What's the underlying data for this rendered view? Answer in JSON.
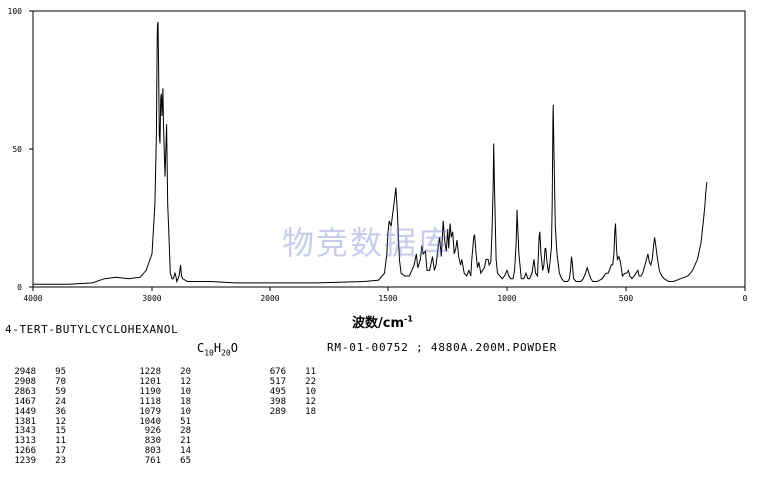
{
  "chart_data": {
    "type": "line",
    "title": "",
    "xlabel": "波数/cm⁻¹",
    "ylabel": "",
    "xlim": [
      4000,
      0
    ],
    "ylim": [
      0,
      100
    ],
    "x_ticks": [
      4000,
      3000,
      2000,
      1500,
      1000,
      500,
      0
    ],
    "x_tick_labels": [
      "4000",
      "3000",
      "2000",
      "1500",
      "1000",
      "500",
      "0"
    ],
    "y_ticks": [
      0,
      50,
      100
    ],
    "y_tick_labels": [
      "0",
      "50",
      "100"
    ],
    "grid": false,
    "series": [
      {
        "points": [
          [
            4000,
            1
          ],
          [
            3700,
            1
          ],
          [
            3500,
            1.5
          ],
          [
            3400,
            3
          ],
          [
            3300,
            3.5
          ],
          [
            3200,
            3
          ],
          [
            3100,
            3.5
          ],
          [
            3050,
            6
          ],
          [
            3000,
            12
          ],
          [
            2975,
            30
          ],
          [
            2963,
            55
          ],
          [
            2956,
            90
          ],
          [
            2953,
            95
          ],
          [
            2949,
            96
          ],
          [
            2944,
            80
          ],
          [
            2938,
            55
          ],
          [
            2932,
            52
          ],
          [
            2926,
            68
          ],
          [
            2921,
            70
          ],
          [
            2915,
            62
          ],
          [
            2908,
            72
          ],
          [
            2903,
            60
          ],
          [
            2890,
            40
          ],
          [
            2876,
            59
          ],
          [
            2867,
            30
          ],
          [
            2858,
            20
          ],
          [
            2845,
            5
          ],
          [
            2830,
            3
          ],
          [
            2820,
            3
          ],
          [
            2805,
            5
          ],
          [
            2798,
            4
          ],
          [
            2790,
            2
          ],
          [
            2770,
            4
          ],
          [
            2758,
            8
          ],
          [
            2750,
            4
          ],
          [
            2740,
            3
          ],
          [
            2700,
            2
          ],
          [
            2600,
            2
          ],
          [
            2500,
            2
          ],
          [
            2300,
            1.5
          ],
          [
            2000,
            1.5
          ],
          [
            1800,
            1.5
          ],
          [
            1600,
            2
          ],
          [
            1540,
            2.5
          ],
          [
            1515,
            5
          ],
          [
            1505,
            12
          ],
          [
            1500,
            20
          ],
          [
            1495,
            24
          ],
          [
            1487,
            22
          ],
          [
            1475,
            30
          ],
          [
            1467,
            36
          ],
          [
            1460,
            26
          ],
          [
            1452,
            10
          ],
          [
            1445,
            5
          ],
          [
            1430,
            4
          ],
          [
            1410,
            4
          ],
          [
            1390,
            8
          ],
          [
            1381,
            12
          ],
          [
            1375,
            7
          ],
          [
            1364,
            10
          ],
          [
            1358,
            15
          ],
          [
            1352,
            12
          ],
          [
            1343,
            13
          ],
          [
            1336,
            6
          ],
          [
            1325,
            6
          ],
          [
            1313,
            11
          ],
          [
            1305,
            6
          ],
          [
            1298,
            8
          ],
          [
            1290,
            14
          ],
          [
            1283,
            18
          ],
          [
            1276,
            11
          ],
          [
            1268,
            24
          ],
          [
            1262,
            17
          ],
          [
            1255,
            13
          ],
          [
            1249,
            21
          ],
          [
            1245,
            14
          ],
          [
            1239,
            23
          ],
          [
            1234,
            18
          ],
          [
            1228,
            20
          ],
          [
            1222,
            12
          ],
          [
            1215,
            14
          ],
          [
            1210,
            17
          ],
          [
            1203,
            11
          ],
          [
            1195,
            8
          ],
          [
            1190,
            10
          ],
          [
            1180,
            5
          ],
          [
            1170,
            4
          ],
          [
            1160,
            6
          ],
          [
            1152,
            4
          ],
          [
            1148,
            10
          ],
          [
            1140,
            18
          ],
          [
            1136,
            19
          ],
          [
            1130,
            12
          ],
          [
            1124,
            7
          ],
          [
            1118,
            9
          ],
          [
            1110,
            5
          ],
          [
            1095,
            7
          ],
          [
            1088,
            10
          ],
          [
            1079,
            10
          ],
          [
            1075,
            8
          ],
          [
            1068,
            9
          ],
          [
            1063,
            20
          ],
          [
            1058,
            37
          ],
          [
            1056,
            52
          ],
          [
            1053,
            38
          ],
          [
            1046,
            10
          ],
          [
            1040,
            5
          ],
          [
            1030,
            4
          ],
          [
            1020,
            3
          ],
          [
            1010,
            4
          ],
          [
            1000,
            6
          ],
          [
            992,
            4
          ],
          [
            985,
            3
          ],
          [
            975,
            3
          ],
          [
            968,
            6
          ],
          [
            962,
            15
          ],
          [
            959,
            24
          ],
          [
            958,
            28
          ],
          [
            955,
            22
          ],
          [
            950,
            12
          ],
          [
            940,
            3
          ],
          [
            930,
            3
          ],
          [
            925,
            4
          ],
          [
            920,
            5
          ],
          [
            912,
            3
          ],
          [
            905,
            3
          ],
          [
            895,
            5
          ],
          [
            887,
            10
          ],
          [
            880,
            5
          ],
          [
            872,
            4
          ],
          [
            868,
            12
          ],
          [
            865,
            18
          ],
          [
            862,
            20
          ],
          [
            857,
            12
          ],
          [
            850,
            6
          ],
          [
            845,
            8
          ],
          [
            840,
            14
          ],
          [
            837,
            14
          ],
          [
            832,
            9
          ],
          [
            825,
            5
          ],
          [
            818,
            10
          ],
          [
            813,
            15
          ],
          [
            810,
            30
          ],
          [
            807,
            60
          ],
          [
            806,
            66
          ],
          [
            803,
            50
          ],
          [
            797,
            22
          ],
          [
            790,
            12
          ],
          [
            780,
            5
          ],
          [
            770,
            3
          ],
          [
            760,
            2
          ],
          [
            745,
            2
          ],
          [
            738,
            3
          ],
          [
            733,
            6
          ],
          [
            729,
            11
          ],
          [
            725,
            8
          ],
          [
            720,
            3
          ],
          [
            710,
            2
          ],
          [
            700,
            2
          ],
          [
            690,
            2
          ],
          [
            680,
            3
          ],
          [
            670,
            5
          ],
          [
            663,
            7
          ],
          [
            656,
            5
          ],
          [
            648,
            3
          ],
          [
            640,
            2
          ],
          [
            620,
            2
          ],
          [
            600,
            3
          ],
          [
            585,
            5
          ],
          [
            575,
            5
          ],
          [
            570,
            6
          ],
          [
            562,
            8
          ],
          [
            556,
            8
          ],
          [
            551,
            12
          ],
          [
            547,
            20
          ],
          [
            544,
            23
          ],
          [
            540,
            14
          ],
          [
            536,
            10
          ],
          [
            530,
            11
          ],
          [
            523,
            9
          ],
          [
            515,
            4
          ],
          [
            505,
            5
          ],
          [
            497,
            5
          ],
          [
            490,
            6
          ],
          [
            484,
            4
          ],
          [
            475,
            3
          ],
          [
            465,
            4
          ],
          [
            458,
            5
          ],
          [
            450,
            6
          ],
          [
            445,
            4
          ],
          [
            437,
            4
          ],
          [
            430,
            5
          ],
          [
            420,
            8
          ],
          [
            414,
            10
          ],
          [
            408,
            12
          ],
          [
            402,
            9
          ],
          [
            396,
            8
          ],
          [
            390,
            10
          ],
          [
            384,
            15
          ],
          [
            380,
            18
          ],
          [
            375,
            15
          ],
          [
            369,
            11
          ],
          [
            360,
            6
          ],
          [
            350,
            4
          ],
          [
            340,
            3
          ],
          [
            320,
            2
          ],
          [
            300,
            2
          ],
          [
            270,
            3
          ],
          [
            240,
            4
          ],
          [
            220,
            6
          ],
          [
            200,
            10
          ],
          [
            185,
            16
          ],
          [
            175,
            24
          ],
          [
            168,
            30
          ],
          [
            165,
            34
          ],
          [
            160,
            38
          ]
        ]
      }
    ]
  },
  "labels": {
    "compound": "4-TERT-BUTYLCYCLOHEXANOL",
    "formula_c": "C",
    "formula_c_n": "10",
    "formula_h": "H",
    "formula_h_n": "20",
    "formula_o": "O",
    "reference": "RM-01-00752 ; 4880A.200M.POWDER",
    "xunit_main": "波数/cm",
    "xunit_exp": "-1",
    "watermark": "物竞数据库"
  },
  "peak_columns": [
    [
      {
        "wn": "2948",
        "it": "95"
      },
      {
        "wn": "2908",
        "it": "70"
      },
      {
        "wn": "2863",
        "it": "59"
      },
      {
        "wn": "1467",
        "it": "24"
      },
      {
        "wn": "1449",
        "it": "36"
      },
      {
        "wn": "1381",
        "it": "12"
      },
      {
        "wn": "1343",
        "it": "15"
      },
      {
        "wn": "1313",
        "it": "11"
      },
      {
        "wn": "1266",
        "it": "17"
      },
      {
        "wn": "1239",
        "it": "23"
      }
    ],
    [
      {
        "wn": "1228",
        "it": "20"
      },
      {
        "wn": "1201",
        "it": "12"
      },
      {
        "wn": "1190",
        "it": "10"
      },
      {
        "wn": "1118",
        "it": "18"
      },
      {
        "wn": "1079",
        "it": "10"
      },
      {
        "wn": "1040",
        "it": "51"
      },
      {
        "wn": "926",
        "it": "28"
      },
      {
        "wn": "830",
        "it": "21"
      },
      {
        "wn": "803",
        "it": "14"
      },
      {
        "wn": "761",
        "it": "65"
      }
    ],
    [
      {
        "wn": "676",
        "it": "11"
      },
      {
        "wn": "517",
        "it": "22"
      },
      {
        "wn": "495",
        "it": "10"
      },
      {
        "wn": "398",
        "it": "12"
      },
      {
        "wn": "289",
        "it": "18"
      }
    ]
  ]
}
